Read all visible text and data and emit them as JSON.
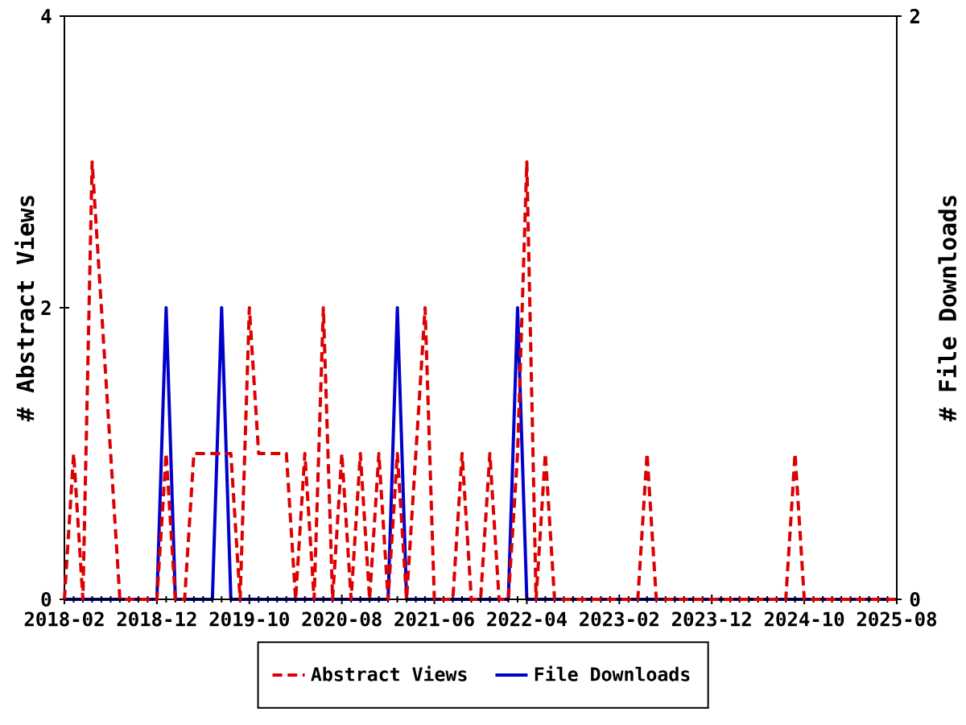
{
  "chart_data": {
    "type": "line",
    "x": [
      "2018-02",
      "2018-03",
      "2018-04",
      "2018-05",
      "2018-06",
      "2018-07",
      "2018-08",
      "2018-09",
      "2018-10",
      "2018-11",
      "2018-12",
      "2019-01",
      "2019-02",
      "2019-03",
      "2019-04",
      "2019-05",
      "2019-06",
      "2019-07",
      "2019-08",
      "2019-09",
      "2019-10",
      "2019-11",
      "2019-12",
      "2020-01",
      "2020-02",
      "2020-03",
      "2020-04",
      "2020-05",
      "2020-06",
      "2020-07",
      "2020-08",
      "2020-09",
      "2020-10",
      "2020-11",
      "2020-12",
      "2021-01",
      "2021-02",
      "2021-03",
      "2021-04",
      "2021-05",
      "2021-06",
      "2021-07",
      "2021-08",
      "2021-09",
      "2021-10",
      "2021-11",
      "2021-12",
      "2022-01",
      "2022-02",
      "2022-03",
      "2022-04",
      "2022-05",
      "2022-06",
      "2022-07",
      "2022-08",
      "2022-09",
      "2022-10",
      "2022-11",
      "2022-12",
      "2023-01",
      "2023-02",
      "2023-03",
      "2023-04",
      "2023-05",
      "2023-06",
      "2023-07",
      "2023-08",
      "2023-09",
      "2023-10",
      "2023-11",
      "2023-12",
      "2024-01",
      "2024-02",
      "2024-03",
      "2024-04",
      "2024-05",
      "2024-06",
      "2024-07",
      "2024-08",
      "2024-09",
      "2024-10",
      "2024-11",
      "2024-12",
      "2025-01",
      "2025-02",
      "2025-03",
      "2025-04",
      "2025-05",
      "2025-06",
      "2025-07",
      "2025-08"
    ],
    "series": [
      {
        "name": "Abstract Views",
        "color": "#dd0000",
        "line_style": "dashed",
        "values": [
          0,
          1,
          0,
          3,
          2,
          1,
          0,
          0,
          0,
          0,
          0,
          1,
          0,
          0,
          1,
          1,
          1,
          1,
          1,
          0,
          2,
          1,
          1,
          1,
          1,
          0,
          1,
          0,
          2,
          0,
          1,
          0,
          1,
          0,
          1,
          0,
          1,
          0,
          1,
          2,
          0,
          0,
          0,
          1,
          0,
          0,
          1,
          0,
          0,
          1,
          3,
          0,
          1,
          0,
          0,
          0,
          0,
          0,
          0,
          0,
          0,
          0,
          0,
          1,
          0,
          0,
          0,
          0,
          0,
          0,
          0,
          0,
          0,
          0,
          0,
          0,
          0,
          0,
          0,
          1,
          0,
          0,
          0,
          0,
          0,
          0,
          0,
          0,
          0,
          0,
          0
        ]
      },
      {
        "name": "File Downloads",
        "color": "#0000cc",
        "line_style": "solid",
        "axis": "y2",
        "values": [
          0,
          0,
          0,
          0,
          0,
          0,
          0,
          0,
          0,
          0,
          0,
          1,
          0,
          0,
          0,
          0,
          0,
          1,
          0,
          0,
          0,
          0,
          0,
          0,
          0,
          0,
          0,
          0,
          0,
          0,
          0,
          0,
          0,
          0,
          0,
          0,
          1,
          0,
          0,
          0,
          0,
          0,
          0,
          0,
          0,
          0,
          0,
          0,
          0,
          1,
          0,
          0,
          0,
          0,
          0,
          0,
          0,
          0,
          0,
          0,
          0,
          0,
          0,
          0,
          0,
          0,
          0,
          0,
          0,
          0,
          0,
          0,
          0,
          0,
          0,
          0,
          0,
          0,
          0,
          0,
          0,
          0,
          0,
          0,
          0,
          0,
          0,
          0,
          0,
          0,
          0
        ]
      }
    ],
    "ylabel": "# Abstract Views",
    "y2label": "# File Downloads",
    "xlim": [
      "2018-02",
      "2025-08"
    ],
    "xticks": [
      "2018-02",
      "2018-12",
      "2019-10",
      "2020-08",
      "2021-06",
      "2022-04",
      "2023-02",
      "2023-12",
      "2024-10",
      "2025-08"
    ],
    "ylim": [
      0,
      4
    ],
    "yticks": [
      0,
      2,
      4
    ],
    "y2lim": [
      0,
      2
    ],
    "y2ticks": [
      0,
      2
    ],
    "legend": "bottom"
  }
}
